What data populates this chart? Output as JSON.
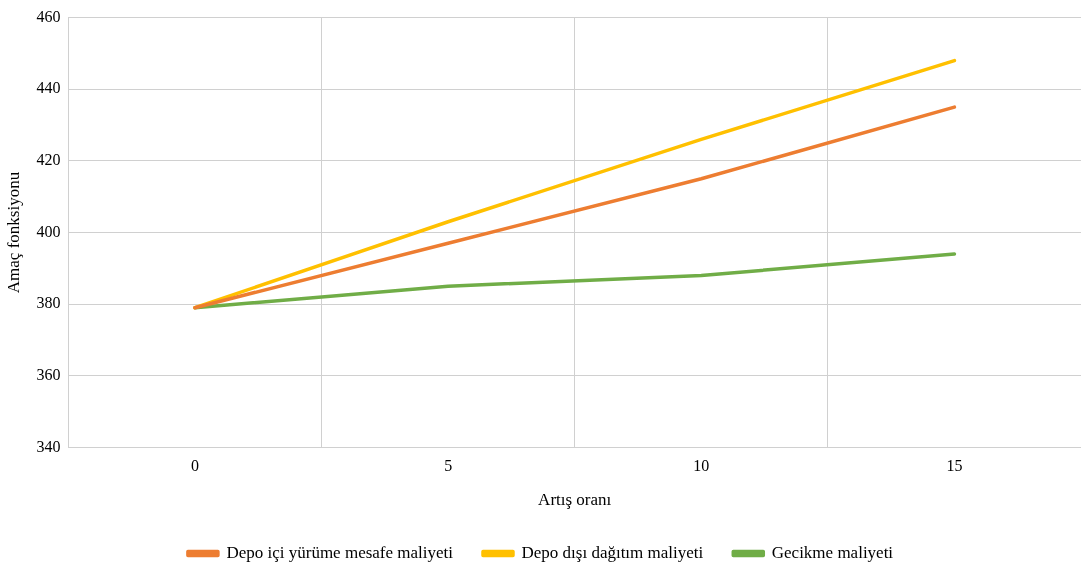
{
  "chart_data": {
    "type": "line",
    "xlabel": "Artış oranı",
    "ylabel": "Amaç fonksiyonu",
    "categories": [
      "0",
      "5",
      "10",
      "15"
    ],
    "series": [
      {
        "name": "Depo içi yürüme mesafe maliyeti",
        "color": "#ed7d31",
        "values": [
          379,
          397,
          415,
          435
        ]
      },
      {
        "name": "Depo dışı dağıtım maliyeti",
        "color": "#ffc000",
        "values": [
          379,
          403,
          426,
          448
        ]
      },
      {
        "name": "Gecikme maliyeti",
        "color": "#70ad47",
        "values": [
          379,
          385,
          388,
          394
        ]
      }
    ],
    "ylim": [
      340,
      460
    ],
    "yticks": [
      340,
      360,
      380,
      400,
      420,
      440,
      460
    ],
    "grid": true,
    "legend": "bottom",
    "marker": "none",
    "line_style": "solid"
  }
}
